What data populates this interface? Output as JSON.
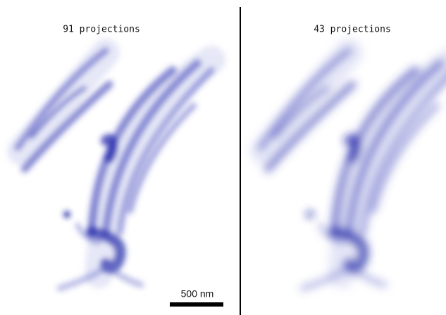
{
  "panels": [
    {
      "label": "91 projections"
    },
    {
      "label": "43 projections"
    }
  ],
  "scale_bar": {
    "label": "500 nm"
  }
}
